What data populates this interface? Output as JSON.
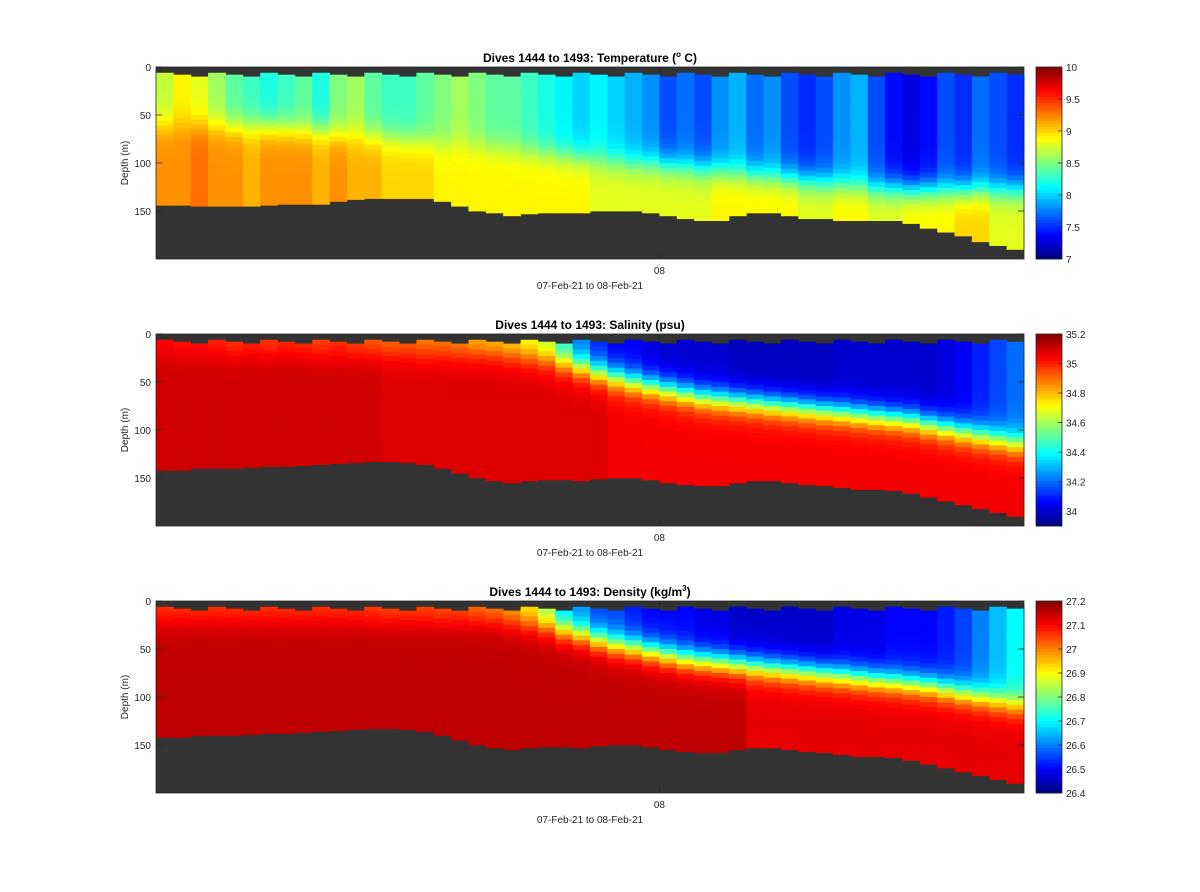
{
  "chart_data": [
    {
      "type": "heatmap",
      "title_prefix": "Dives 1444 to 1493: Temperature (",
      "title_sup": "o",
      "title_suffix": " C)",
      "ylabel": "Depth (m)",
      "xlabel": "07-Feb-21 to 08-Feb-21",
      "x_tick_labels": [
        "08"
      ],
      "x_tick_positions": [
        0.58
      ],
      "ylim": [
        0,
        200
      ],
      "y_reversed": true,
      "y_ticks": [
        0,
        50,
        100,
        150
      ],
      "colormap": "jet",
      "clim": [
        7,
        10
      ],
      "colorbar_ticks": [
        7,
        7.5,
        8,
        8.5,
        9,
        9.5,
        10
      ],
      "colorbar_tick_labels": [
        "7",
        "7.5",
        "8",
        "8.5",
        "9",
        "9.5",
        "10"
      ],
      "dives": {
        "count": 50,
        "first": 1444,
        "last": 1493
      },
      "bottom_depth_m": [
        144,
        144,
        145,
        145,
        145,
        145,
        144,
        143,
        143,
        143,
        140,
        138,
        137,
        137,
        137,
        137,
        140,
        145,
        150,
        152,
        155,
        153,
        152,
        152,
        152,
        150,
        150,
        150,
        152,
        155,
        158,
        160,
        160,
        155,
        152,
        152,
        155,
        158,
        158,
        160,
        160,
        160,
        160,
        163,
        168,
        172,
        176,
        182,
        186,
        190
      ],
      "upper_layer_c": [
        8.7,
        8.9,
        8.8,
        8.6,
        8.4,
        8.3,
        8.2,
        8.3,
        8.4,
        8.2,
        8.5,
        8.6,
        8.4,
        8.3,
        8.3,
        8.4,
        8.5,
        8.6,
        8.5,
        8.4,
        8.4,
        8.3,
        8.2,
        8.1,
        8.0,
        8.1,
        8.0,
        7.9,
        7.8,
        7.6,
        7.7,
        7.6,
        7.8,
        7.9,
        7.7,
        7.8,
        7.6,
        7.5,
        7.6,
        7.8,
        7.9,
        7.6,
        7.4,
        7.3,
        7.4,
        7.6,
        7.5,
        7.7,
        7.6,
        7.5
      ],
      "lower_layer_c": [
        9.2,
        9.2,
        9.3,
        9.2,
        9.2,
        9.1,
        9.2,
        9.2,
        9.2,
        9.1,
        9.2,
        9.1,
        9.1,
        9.0,
        9.0,
        9.0,
        8.9,
        8.9,
        8.9,
        8.9,
        8.9,
        8.9,
        8.9,
        8.9,
        8.9,
        8.8,
        8.8,
        8.8,
        8.8,
        8.8,
        8.8,
        8.8,
        8.9,
        8.9,
        8.9,
        8.9,
        8.9,
        8.8,
        8.8,
        8.9,
        8.9,
        8.8,
        8.8,
        8.9,
        8.9,
        8.9,
        9.0,
        9.0,
        8.8,
        8.8
      ],
      "interface_depth_m": [
        60,
        60,
        60,
        60,
        62,
        62,
        62,
        64,
        66,
        66,
        70,
        70,
        72,
        74,
        76,
        78,
        80,
        80,
        82,
        84,
        86,
        88,
        90,
        92,
        94,
        96,
        98,
        100,
        100,
        102,
        104,
        106,
        108,
        110,
        112,
        114,
        116,
        118,
        120,
        122,
        124,
        126,
        126,
        128,
        128,
        128,
        128,
        128,
        128,
        128
      ]
    },
    {
      "type": "heatmap",
      "title": "Dives 1444 to 1493: Salinity (psu)",
      "ylabel": "Depth (m)",
      "xlabel": "07-Feb-21 to 08-Feb-21",
      "x_tick_labels": [
        "08"
      ],
      "x_tick_positions": [
        0.58
      ],
      "ylim": [
        0,
        200
      ],
      "y_reversed": true,
      "y_ticks": [
        0,
        50,
        100,
        150
      ],
      "colormap": "jet",
      "clim": [
        33.9,
        35.2
      ],
      "colorbar_ticks": [
        34,
        34.2,
        34.4,
        34.6,
        34.8,
        35,
        35.2
      ],
      "colorbar_tick_labels": [
        "34",
        "34.2",
        "34.4",
        "34.6",
        "34.8",
        "35",
        "35.2"
      ],
      "dives": {
        "count": 50,
        "first": 1444,
        "last": 1493
      },
      "bottom_depth_m": [
        142,
        142,
        140,
        140,
        140,
        139,
        138,
        138,
        137,
        136,
        135,
        134,
        133,
        133,
        134,
        136,
        140,
        145,
        150,
        153,
        155,
        153,
        152,
        152,
        153,
        151,
        150,
        150,
        152,
        155,
        157,
        158,
        158,
        155,
        153,
        153,
        155,
        157,
        158,
        160,
        162,
        162,
        163,
        166,
        170,
        174,
        178,
        182,
        186,
        190
      ],
      "upper_layer_psu": [
        35.02,
        35.0,
        35.0,
        34.98,
        34.95,
        34.97,
        34.95,
        34.97,
        34.95,
        34.93,
        34.95,
        34.92,
        34.9,
        34.88,
        34.88,
        34.85,
        34.85,
        34.82,
        34.78,
        34.75,
        34.72,
        34.68,
        34.6,
        34.4,
        34.2,
        34.1,
        34.05,
        34.05,
        34.02,
        34.0,
        34.0,
        34.0,
        34.0,
        33.98,
        33.98,
        33.98,
        33.98,
        33.98,
        33.98,
        34.0,
        34.0,
        34.0,
        34.0,
        34.0,
        34.0,
        34.02,
        34.05,
        34.1,
        34.15,
        34.2
      ],
      "lower_layer_psu": [
        35.1,
        35.1,
        35.1,
        35.1,
        35.1,
        35.1,
        35.1,
        35.1,
        35.1,
        35.1,
        35.1,
        35.1,
        35.1,
        35.08,
        35.08,
        35.08,
        35.08,
        35.08,
        35.08,
        35.08,
        35.08,
        35.08,
        35.08,
        35.08,
        35.08,
        35.08,
        35.05,
        35.05,
        35.05,
        35.05,
        35.05,
        35.05,
        35.05,
        35.05,
        35.05,
        35.05,
        35.05,
        35.05,
        35.05,
        35.05,
        35.05,
        35.05,
        35.05,
        35.05,
        35.05,
        35.05,
        35.05,
        35.05,
        35.05,
        35.05
      ],
      "interface_depth_m": [
        20,
        20,
        20,
        20,
        20,
        20,
        20,
        20,
        20,
        20,
        20,
        20,
        20,
        20,
        20,
        20,
        20,
        20,
        20,
        20,
        22,
        24,
        26,
        30,
        34,
        40,
        45,
        50,
        54,
        58,
        62,
        66,
        68,
        70,
        72,
        74,
        76,
        78,
        80,
        82,
        84,
        86,
        88,
        90,
        94,
        98,
        102,
        106,
        110,
        114
      ]
    },
    {
      "type": "heatmap",
      "title_prefix": "Dives 1444 to 1493: Density (kg/m",
      "title_sup": "3",
      "title_suffix": ")",
      "ylabel": "Depth (m)",
      "xlabel": "07-Feb-21 to 08-Feb-21",
      "x_tick_labels": [
        "08"
      ],
      "x_tick_positions": [
        0.58
      ],
      "ylim": [
        0,
        200
      ],
      "y_reversed": true,
      "y_ticks": [
        0,
        50,
        100,
        150
      ],
      "colormap": "jet",
      "clim": [
        26.4,
        27.2
      ],
      "colorbar_ticks": [
        26.4,
        26.5,
        26.6,
        26.7,
        26.8,
        26.9,
        27,
        27.1,
        27.2
      ],
      "colorbar_tick_labels": [
        "26.4",
        "26.5",
        "26.6",
        "26.7",
        "26.8",
        "26.9",
        "27",
        "27.1",
        "27.2"
      ],
      "dives": {
        "count": 50,
        "first": 1444,
        "last": 1493
      },
      "bottom_depth_m": [
        142,
        142,
        140,
        140,
        140,
        139,
        138,
        138,
        137,
        136,
        135,
        134,
        133,
        133,
        134,
        136,
        140,
        145,
        150,
        153,
        155,
        153,
        152,
        152,
        153,
        151,
        150,
        150,
        152,
        155,
        157,
        158,
        158,
        155,
        153,
        153,
        155,
        157,
        158,
        160,
        162,
        162,
        163,
        166,
        170,
        174,
        178,
        182,
        186,
        190
      ],
      "upper_layer_kgm3": [
        27.05,
        27.05,
        27.05,
        27.05,
        27.05,
        27.05,
        27.05,
        27.05,
        27.05,
        27.05,
        27.05,
        27.05,
        27.04,
        27.03,
        27.03,
        27.03,
        27.02,
        27.02,
        27.0,
        26.98,
        26.95,
        26.9,
        26.8,
        26.65,
        26.6,
        26.55,
        26.55,
        26.52,
        26.5,
        26.5,
        26.5,
        26.48,
        26.48,
        26.46,
        26.46,
        26.46,
        26.46,
        26.46,
        26.46,
        26.48,
        26.48,
        26.48,
        26.5,
        26.5,
        26.5,
        26.52,
        26.55,
        26.6,
        26.65,
        26.7
      ],
      "lower_layer_kgm3": [
        27.15,
        27.15,
        27.15,
        27.15,
        27.15,
        27.15,
        27.15,
        27.15,
        27.15,
        27.15,
        27.15,
        27.15,
        27.15,
        27.15,
        27.15,
        27.15,
        27.15,
        27.15,
        27.15,
        27.15,
        27.15,
        27.15,
        27.15,
        27.15,
        27.15,
        27.15,
        27.15,
        27.15,
        27.15,
        27.15,
        27.15,
        27.15,
        27.15,
        27.15,
        27.12,
        27.12,
        27.12,
        27.12,
        27.12,
        27.12,
        27.12,
        27.12,
        27.12,
        27.12,
        27.12,
        27.12,
        27.12,
        27.12,
        27.12,
        27.12
      ],
      "interface_depth_m": [
        20,
        20,
        20,
        20,
        20,
        20,
        20,
        20,
        20,
        20,
        20,
        20,
        20,
        20,
        20,
        20,
        20,
        20,
        20,
        20,
        22,
        24,
        26,
        30,
        34,
        40,
        45,
        48,
        52,
        56,
        60,
        62,
        64,
        66,
        68,
        70,
        72,
        74,
        76,
        78,
        80,
        82,
        84,
        86,
        88,
        92,
        96,
        100,
        104,
        108
      ]
    }
  ],
  "colors": {
    "no_data": "#333333",
    "axis": "#262626",
    "background": "#ffffff"
  }
}
